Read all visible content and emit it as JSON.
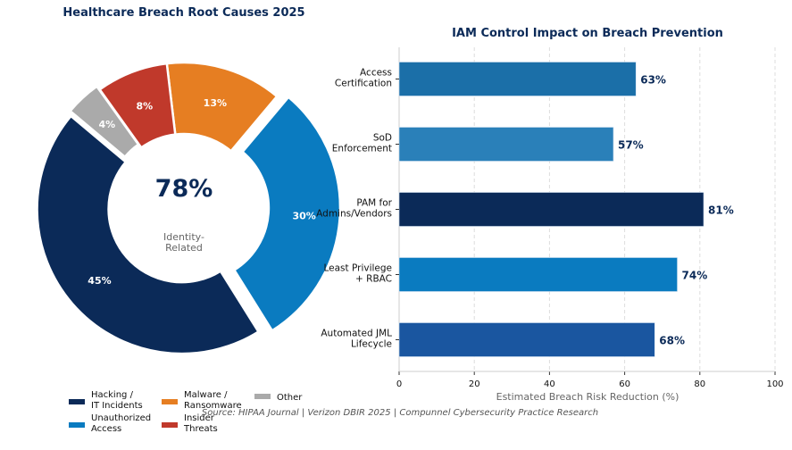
{
  "chart_data": [
    {
      "type": "pie",
      "subtype": "donut",
      "title": "Healthcare Breach Root Causes 2025",
      "center_value": "78%",
      "center_label": [
        "Identity-",
        "Related"
      ],
      "start_angle_deg": 140,
      "direction": "counterclockwise",
      "slices": [
        {
          "name": "Hacking / IT Incidents",
          "legend": [
            "Hacking /",
            "IT Incidents"
          ],
          "value": 45,
          "label": "45%",
          "color": "#0b2a58",
          "explode": 0.02
        },
        {
          "name": "Unauthorized Access",
          "legend": [
            "Unauthorized",
            "Access"
          ],
          "value": 30,
          "label": "30%",
          "color": "#0a7bc0",
          "explode": 0.08
        },
        {
          "name": "Malware / Ransomware",
          "legend": [
            "Malware /",
            "Ransomware"
          ],
          "value": 13,
          "label": "13%",
          "color": "#e67e22",
          "explode": 0
        },
        {
          "name": "Insider Threats",
          "legend": [
            "Insider",
            "Threats"
          ],
          "value": 8,
          "label": "8%",
          "color": "#c0392b",
          "explode": 0
        },
        {
          "name": "Other",
          "legend": [
            "Other"
          ],
          "value": 4,
          "label": "4%",
          "color": "#aaaaaa",
          "explode": 0.03
        }
      ],
      "legend_position": "bottom-left"
    },
    {
      "type": "bar",
      "orientation": "horizontal",
      "title": "IAM Control Impact on Breach Prevention",
      "xlabel": "Estimated Breach Risk Reduction (%)",
      "ylabel": "",
      "xlim": [
        0,
        100
      ],
      "xticks": [
        0,
        20,
        40,
        60,
        80,
        100
      ],
      "grid": "x-dashed",
      "categories": [
        [
          "Access",
          "Certification"
        ],
        [
          "SoD",
          "Enforcement"
        ],
        [
          "PAM for",
          "Admins/Vendors"
        ],
        [
          "Least Privilege",
          "+ RBAC"
        ],
        [
          "Automated JML",
          "Lifecycle"
        ]
      ],
      "values": [
        63,
        57,
        81,
        74,
        68
      ],
      "data_labels": [
        "63%",
        "57%",
        "81%",
        "74%",
        "68%"
      ],
      "colors": [
        "#1b6fa8",
        "#2a80b9",
        "#0b2a58",
        "#0a7bc0",
        "#1a56a0"
      ]
    }
  ],
  "source": "Source: HIPAA Journal | Verizon DBIR 2025 | Compunnel Cybersecurity Practice Research"
}
